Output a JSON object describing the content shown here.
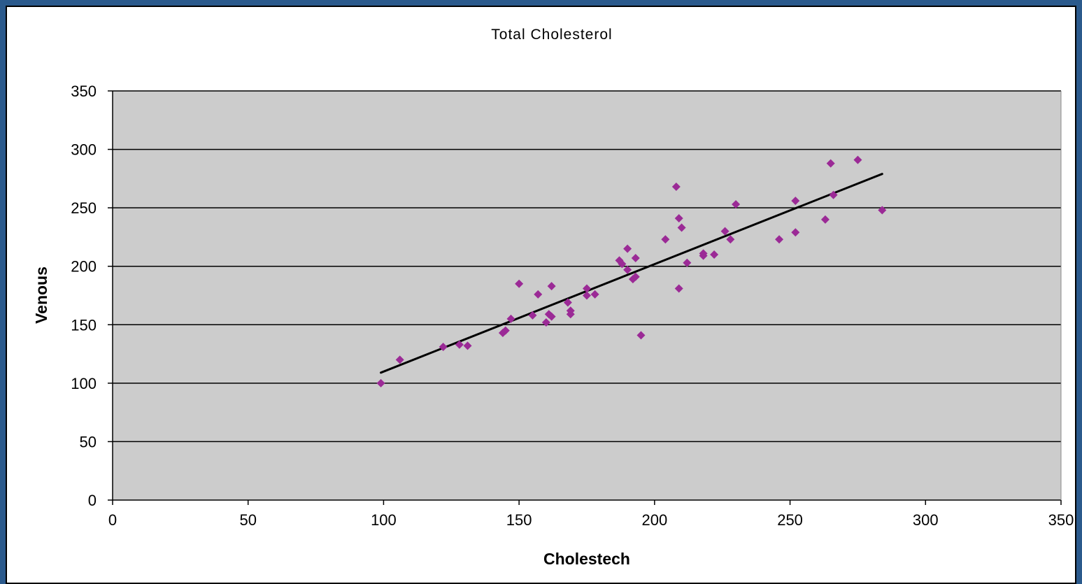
{
  "colors": {
    "background": "#2b5a8c",
    "plot_area": "#cccccc",
    "marker": "#9b2a96",
    "trendline": "#000000",
    "gridline": "#000000"
  },
  "chart_data": {
    "type": "scatter",
    "title": "Total Cholesterol",
    "xlabel": "Cholestech",
    "ylabel": "Venous",
    "xlim": [
      0,
      350
    ],
    "ylim": [
      0,
      350
    ],
    "xticks": [
      0,
      50,
      100,
      150,
      200,
      250,
      300,
      350
    ],
    "yticks": [
      0,
      50,
      100,
      150,
      200,
      250,
      300,
      350
    ],
    "grid": "horizontal",
    "marker": "diamond",
    "points": [
      {
        "x": 99,
        "y": 100
      },
      {
        "x": 106,
        "y": 120
      },
      {
        "x": 122,
        "y": 131
      },
      {
        "x": 128,
        "y": 133
      },
      {
        "x": 131,
        "y": 132
      },
      {
        "x": 144,
        "y": 143
      },
      {
        "x": 145,
        "y": 145
      },
      {
        "x": 147,
        "y": 155
      },
      {
        "x": 150,
        "y": 185
      },
      {
        "x": 155,
        "y": 158
      },
      {
        "x": 157,
        "y": 176
      },
      {
        "x": 160,
        "y": 152
      },
      {
        "x": 161,
        "y": 159
      },
      {
        "x": 162,
        "y": 157
      },
      {
        "x": 162,
        "y": 183
      },
      {
        "x": 168,
        "y": 169
      },
      {
        "x": 169,
        "y": 162
      },
      {
        "x": 169,
        "y": 159
      },
      {
        "x": 175,
        "y": 181
      },
      {
        "x": 175,
        "y": 175
      },
      {
        "x": 178,
        "y": 176
      },
      {
        "x": 187,
        "y": 205
      },
      {
        "x": 188,
        "y": 202
      },
      {
        "x": 190,
        "y": 197
      },
      {
        "x": 190,
        "y": 215
      },
      {
        "x": 192,
        "y": 189
      },
      {
        "x": 193,
        "y": 191
      },
      {
        "x": 193,
        "y": 207
      },
      {
        "x": 195,
        "y": 141
      },
      {
        "x": 204,
        "y": 223
      },
      {
        "x": 208,
        "y": 268
      },
      {
        "x": 209,
        "y": 241
      },
      {
        "x": 209,
        "y": 181
      },
      {
        "x": 210,
        "y": 233
      },
      {
        "x": 212,
        "y": 203
      },
      {
        "x": 218,
        "y": 209
      },
      {
        "x": 218,
        "y": 211
      },
      {
        "x": 222,
        "y": 210
      },
      {
        "x": 226,
        "y": 230
      },
      {
        "x": 228,
        "y": 223
      },
      {
        "x": 230,
        "y": 253
      },
      {
        "x": 246,
        "y": 223
      },
      {
        "x": 252,
        "y": 229
      },
      {
        "x": 252,
        "y": 256
      },
      {
        "x": 263,
        "y": 240
      },
      {
        "x": 265,
        "y": 288
      },
      {
        "x": 266,
        "y": 261
      },
      {
        "x": 275,
        "y": 291
      },
      {
        "x": 284,
        "y": 248
      }
    ],
    "trendline": {
      "type": "linear",
      "x_start": 99,
      "y_start": 109,
      "x_end": 284,
      "y_end": 279
    }
  }
}
